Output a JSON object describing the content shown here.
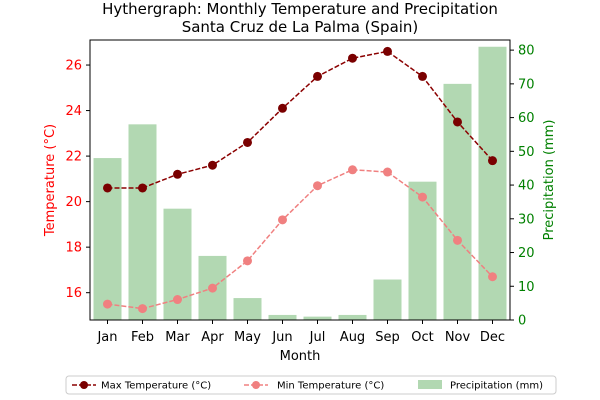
{
  "chart_data": {
    "type": "bar+line",
    "title_line1": "Hythergraph: Monthly Temperature and Precipitation",
    "title_line2": "Santa Cruz de La Palma (Spain)",
    "xlabel": "Month",
    "ylabel_left": "Temperature (°C)",
    "ylabel_right": "Precipitation (mm)",
    "categories": [
      "Jan",
      "Feb",
      "Mar",
      "Apr",
      "May",
      "Jun",
      "Jul",
      "Aug",
      "Sep",
      "Oct",
      "Nov",
      "Dec"
    ],
    "ylim_left": [
      14.8,
      27.1
    ],
    "ylim_right": [
      0,
      83
    ],
    "yticks_left": [
      16,
      18,
      20,
      22,
      24,
      26
    ],
    "yticks_right": [
      0,
      10,
      20,
      30,
      40,
      50,
      60,
      70,
      80
    ],
    "legend_position": "bottom-center",
    "series": [
      {
        "name": "Max Temperature (°C)",
        "axis": "left",
        "kind": "line",
        "values": [
          20.6,
          20.6,
          21.2,
          21.6,
          22.6,
          24.1,
          25.5,
          26.3,
          26.6,
          25.5,
          23.5,
          21.8
        ],
        "color": "#8b0000",
        "marker_color": "#7a0000",
        "style": "dashed"
      },
      {
        "name": "Min Temperature (°C)",
        "axis": "left",
        "kind": "line",
        "values": [
          15.5,
          15.3,
          15.7,
          16.2,
          17.4,
          19.2,
          20.7,
          21.4,
          21.3,
          20.2,
          18.3,
          16.7
        ],
        "color": "#f08080",
        "marker_color": "#f08080",
        "style": "dashed"
      },
      {
        "name": "Precipitation (mm)",
        "axis": "right",
        "kind": "bar",
        "values": [
          48,
          58,
          33,
          19,
          6.5,
          1.5,
          1,
          1.5,
          12,
          41,
          70,
          81
        ],
        "color": "#b2d8b2"
      }
    ],
    "colors": {
      "left_axis": "#ff0000",
      "right_axis": "#008000"
    }
  }
}
